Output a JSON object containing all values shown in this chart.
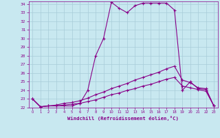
{
  "xlabel": "Windchill (Refroidissement éolien,°C)",
  "xlim": [
    0,
    23
  ],
  "ylim": [
    22,
    34
  ],
  "yticks": [
    22,
    23,
    24,
    25,
    26,
    27,
    28,
    29,
    30,
    31,
    32,
    33,
    34
  ],
  "xticks": [
    0,
    1,
    2,
    3,
    4,
    5,
    6,
    7,
    8,
    9,
    10,
    11,
    12,
    13,
    14,
    15,
    16,
    17,
    18,
    19,
    20,
    21,
    22,
    23
  ],
  "bg_color": "#c8e8f0",
  "line_color": "#880088",
  "grid_color": "#a8ccd8",
  "series1_x": [
    0,
    1,
    2,
    3,
    4,
    5,
    6,
    7,
    8,
    9,
    10,
    11,
    12,
    13,
    14,
    15,
    16,
    17,
    18,
    19,
    20,
    21,
    22,
    23
  ],
  "series1_y": [
    23.0,
    22.1,
    22.2,
    22.2,
    22.2,
    22.2,
    22.5,
    24.0,
    28.0,
    30.0,
    34.2,
    33.5,
    33.0,
    33.8,
    34.1,
    34.1,
    34.1,
    34.1,
    33.3,
    24.0,
    25.0,
    24.2,
    24.1,
    22.2
  ],
  "series2_x": [
    0,
    1,
    2,
    3,
    4,
    5,
    6,
    7,
    8,
    9,
    10,
    11,
    12,
    13,
    14,
    15,
    16,
    17,
    18,
    19,
    20,
    21,
    22,
    23
  ],
  "series2_y": [
    23.0,
    22.1,
    22.2,
    22.3,
    22.5,
    22.6,
    22.8,
    23.1,
    23.5,
    23.8,
    24.2,
    24.5,
    24.8,
    25.2,
    25.5,
    25.8,
    26.1,
    26.5,
    26.8,
    25.2,
    24.9,
    24.3,
    24.2,
    22.2
  ],
  "series3_x": [
    0,
    1,
    2,
    3,
    4,
    5,
    6,
    7,
    8,
    9,
    10,
    11,
    12,
    13,
    14,
    15,
    16,
    17,
    18,
    19,
    20,
    21,
    22,
    23
  ],
  "series3_y": [
    23.0,
    22.1,
    22.2,
    22.2,
    22.3,
    22.4,
    22.5,
    22.7,
    22.9,
    23.2,
    23.5,
    23.7,
    24.0,
    24.2,
    24.5,
    24.7,
    25.0,
    25.3,
    25.5,
    24.5,
    24.3,
    24.1,
    23.9,
    22.2
  ],
  "marker": "+",
  "markersize": 2.5,
  "linewidth": 0.8
}
